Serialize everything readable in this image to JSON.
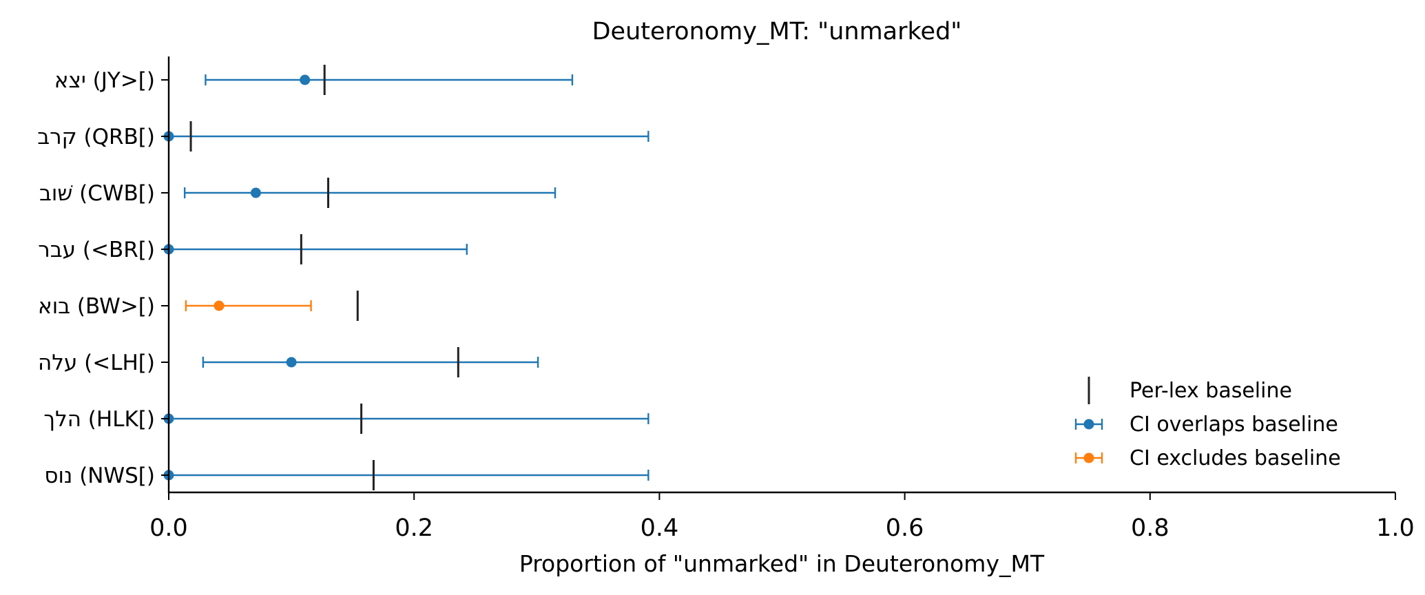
{
  "chart_data": {
    "type": "errorbar",
    "title": "Deuteronomy_MT: \"unmarked\"",
    "xlabel": "Proportion of \"unmarked\" in Deuteronomy_MT",
    "ylabel": "",
    "xlim": [
      0.0,
      1.0
    ],
    "x_ticks": [
      "0.0",
      "0.2",
      "0.4",
      "0.6",
      "0.8",
      "1.0"
    ],
    "grid": false,
    "legend_position": "lower-right",
    "colors": {
      "overlaps": "#1f77b4",
      "excludes": "#ff7f0e",
      "baseline": "#222222"
    },
    "legend": [
      {
        "label": "Per-lex baseline",
        "kind": "baseline"
      },
      {
        "label": "CI overlaps baseline",
        "kind": "overlaps"
      },
      {
        "label": "CI excludes baseline",
        "kind": "excludes"
      }
    ],
    "categories": [
      {
        "label": "יצא (JY>[)",
        "value": 0.111,
        "ci_low": 0.03,
        "ci_high": 0.329,
        "baseline": 0.127,
        "status": "overlaps"
      },
      {
        "label": "קרב (QRB[)",
        "value": 0.0,
        "ci_low": 0.0,
        "ci_high": 0.391,
        "baseline": 0.018,
        "status": "overlaps"
      },
      {
        "label": "שׁוב (CWB[)",
        "value": 0.071,
        "ci_low": 0.013,
        "ci_high": 0.315,
        "baseline": 0.13,
        "status": "overlaps"
      },
      {
        "label": "עבר (<BR[)",
        "value": 0.0,
        "ci_low": 0.0,
        "ci_high": 0.243,
        "baseline": 0.108,
        "status": "overlaps"
      },
      {
        "label": "בוא (BW>[)",
        "value": 0.041,
        "ci_low": 0.014,
        "ci_high": 0.116,
        "baseline": 0.154,
        "status": "excludes"
      },
      {
        "label": "עלה (<LH[)",
        "value": 0.1,
        "ci_low": 0.028,
        "ci_high": 0.301,
        "baseline": 0.236,
        "status": "overlaps"
      },
      {
        "label": "הלך (HLK[)",
        "value": 0.0,
        "ci_low": 0.0,
        "ci_high": 0.391,
        "baseline": 0.157,
        "status": "overlaps"
      },
      {
        "label": "נוס (NWS[)",
        "value": 0.0,
        "ci_low": 0.0,
        "ci_high": 0.391,
        "baseline": 0.167,
        "status": "overlaps"
      }
    ]
  }
}
